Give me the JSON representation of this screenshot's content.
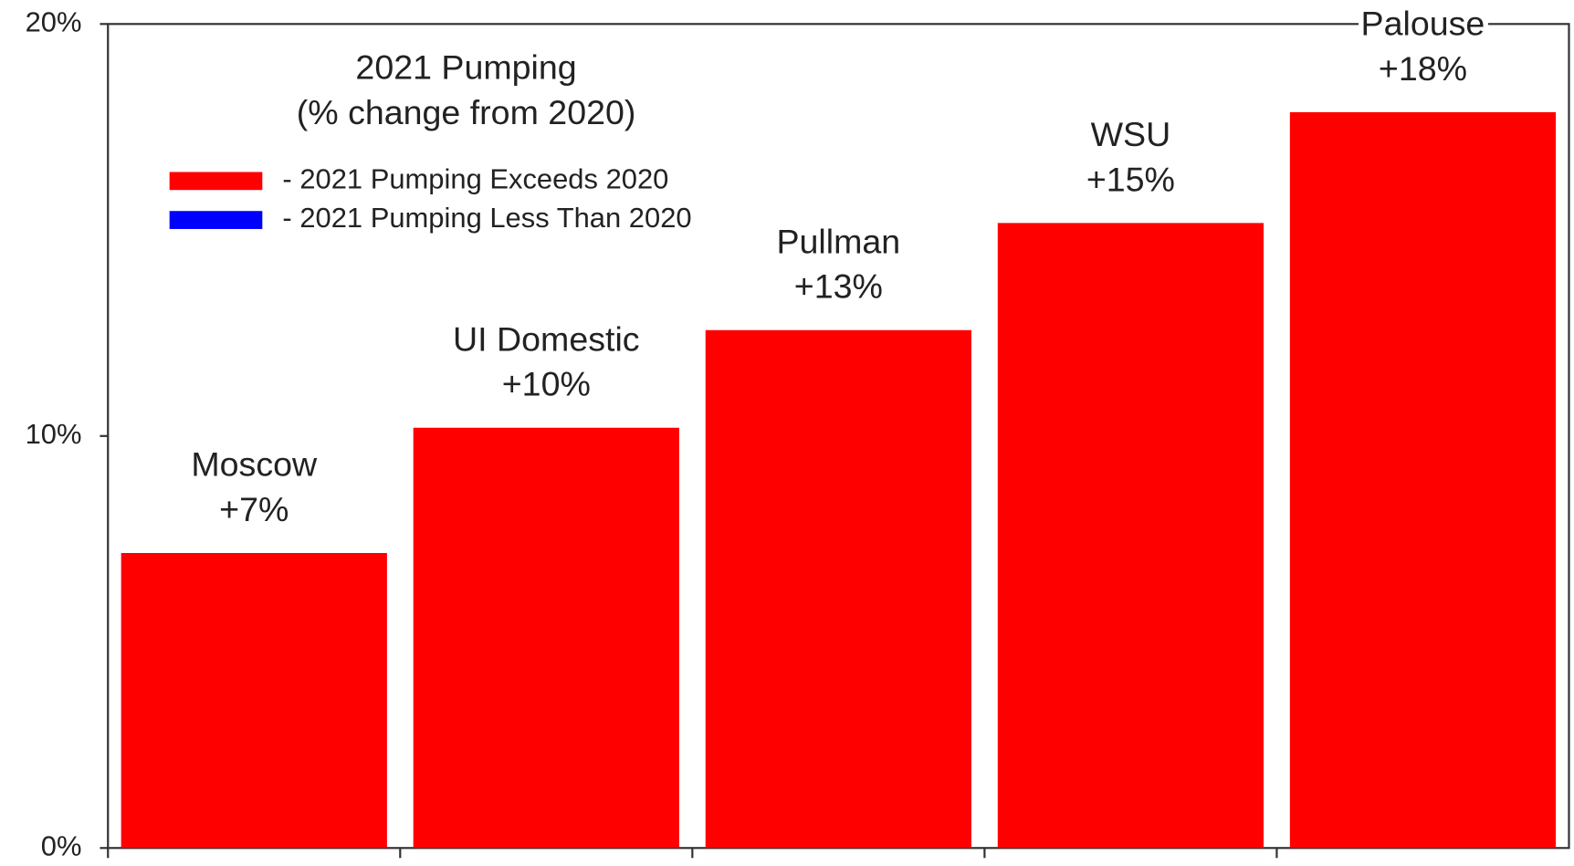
{
  "chart_data": {
    "type": "bar",
    "title": "2021 Pumping",
    "subtitle": "(% change from 2020)",
    "categories": [
      "Moscow",
      "UI Domestic",
      "Pullman",
      "WSU",
      "Palouse"
    ],
    "values": [
      7.16,
      10.2,
      12.57,
      15.17,
      17.86
    ],
    "value_labels": [
      "+7%",
      "+10%",
      "+13%",
      "+15%",
      "+18%"
    ],
    "legend": [
      {
        "label": "- 2021 Pumping Exceeds 2020",
        "color": "#ff0000"
      },
      {
        "label": "- 2021 Pumping Less Than 2020",
        "color": "#0000ff"
      }
    ],
    "ylim": [
      0,
      20
    ],
    "yticks": [
      {
        "value": 0,
        "label": "0%"
      },
      {
        "value": 10,
        "label": "10%"
      },
      {
        "value": 20,
        "label": "20%"
      }
    ],
    "grid": false
  }
}
